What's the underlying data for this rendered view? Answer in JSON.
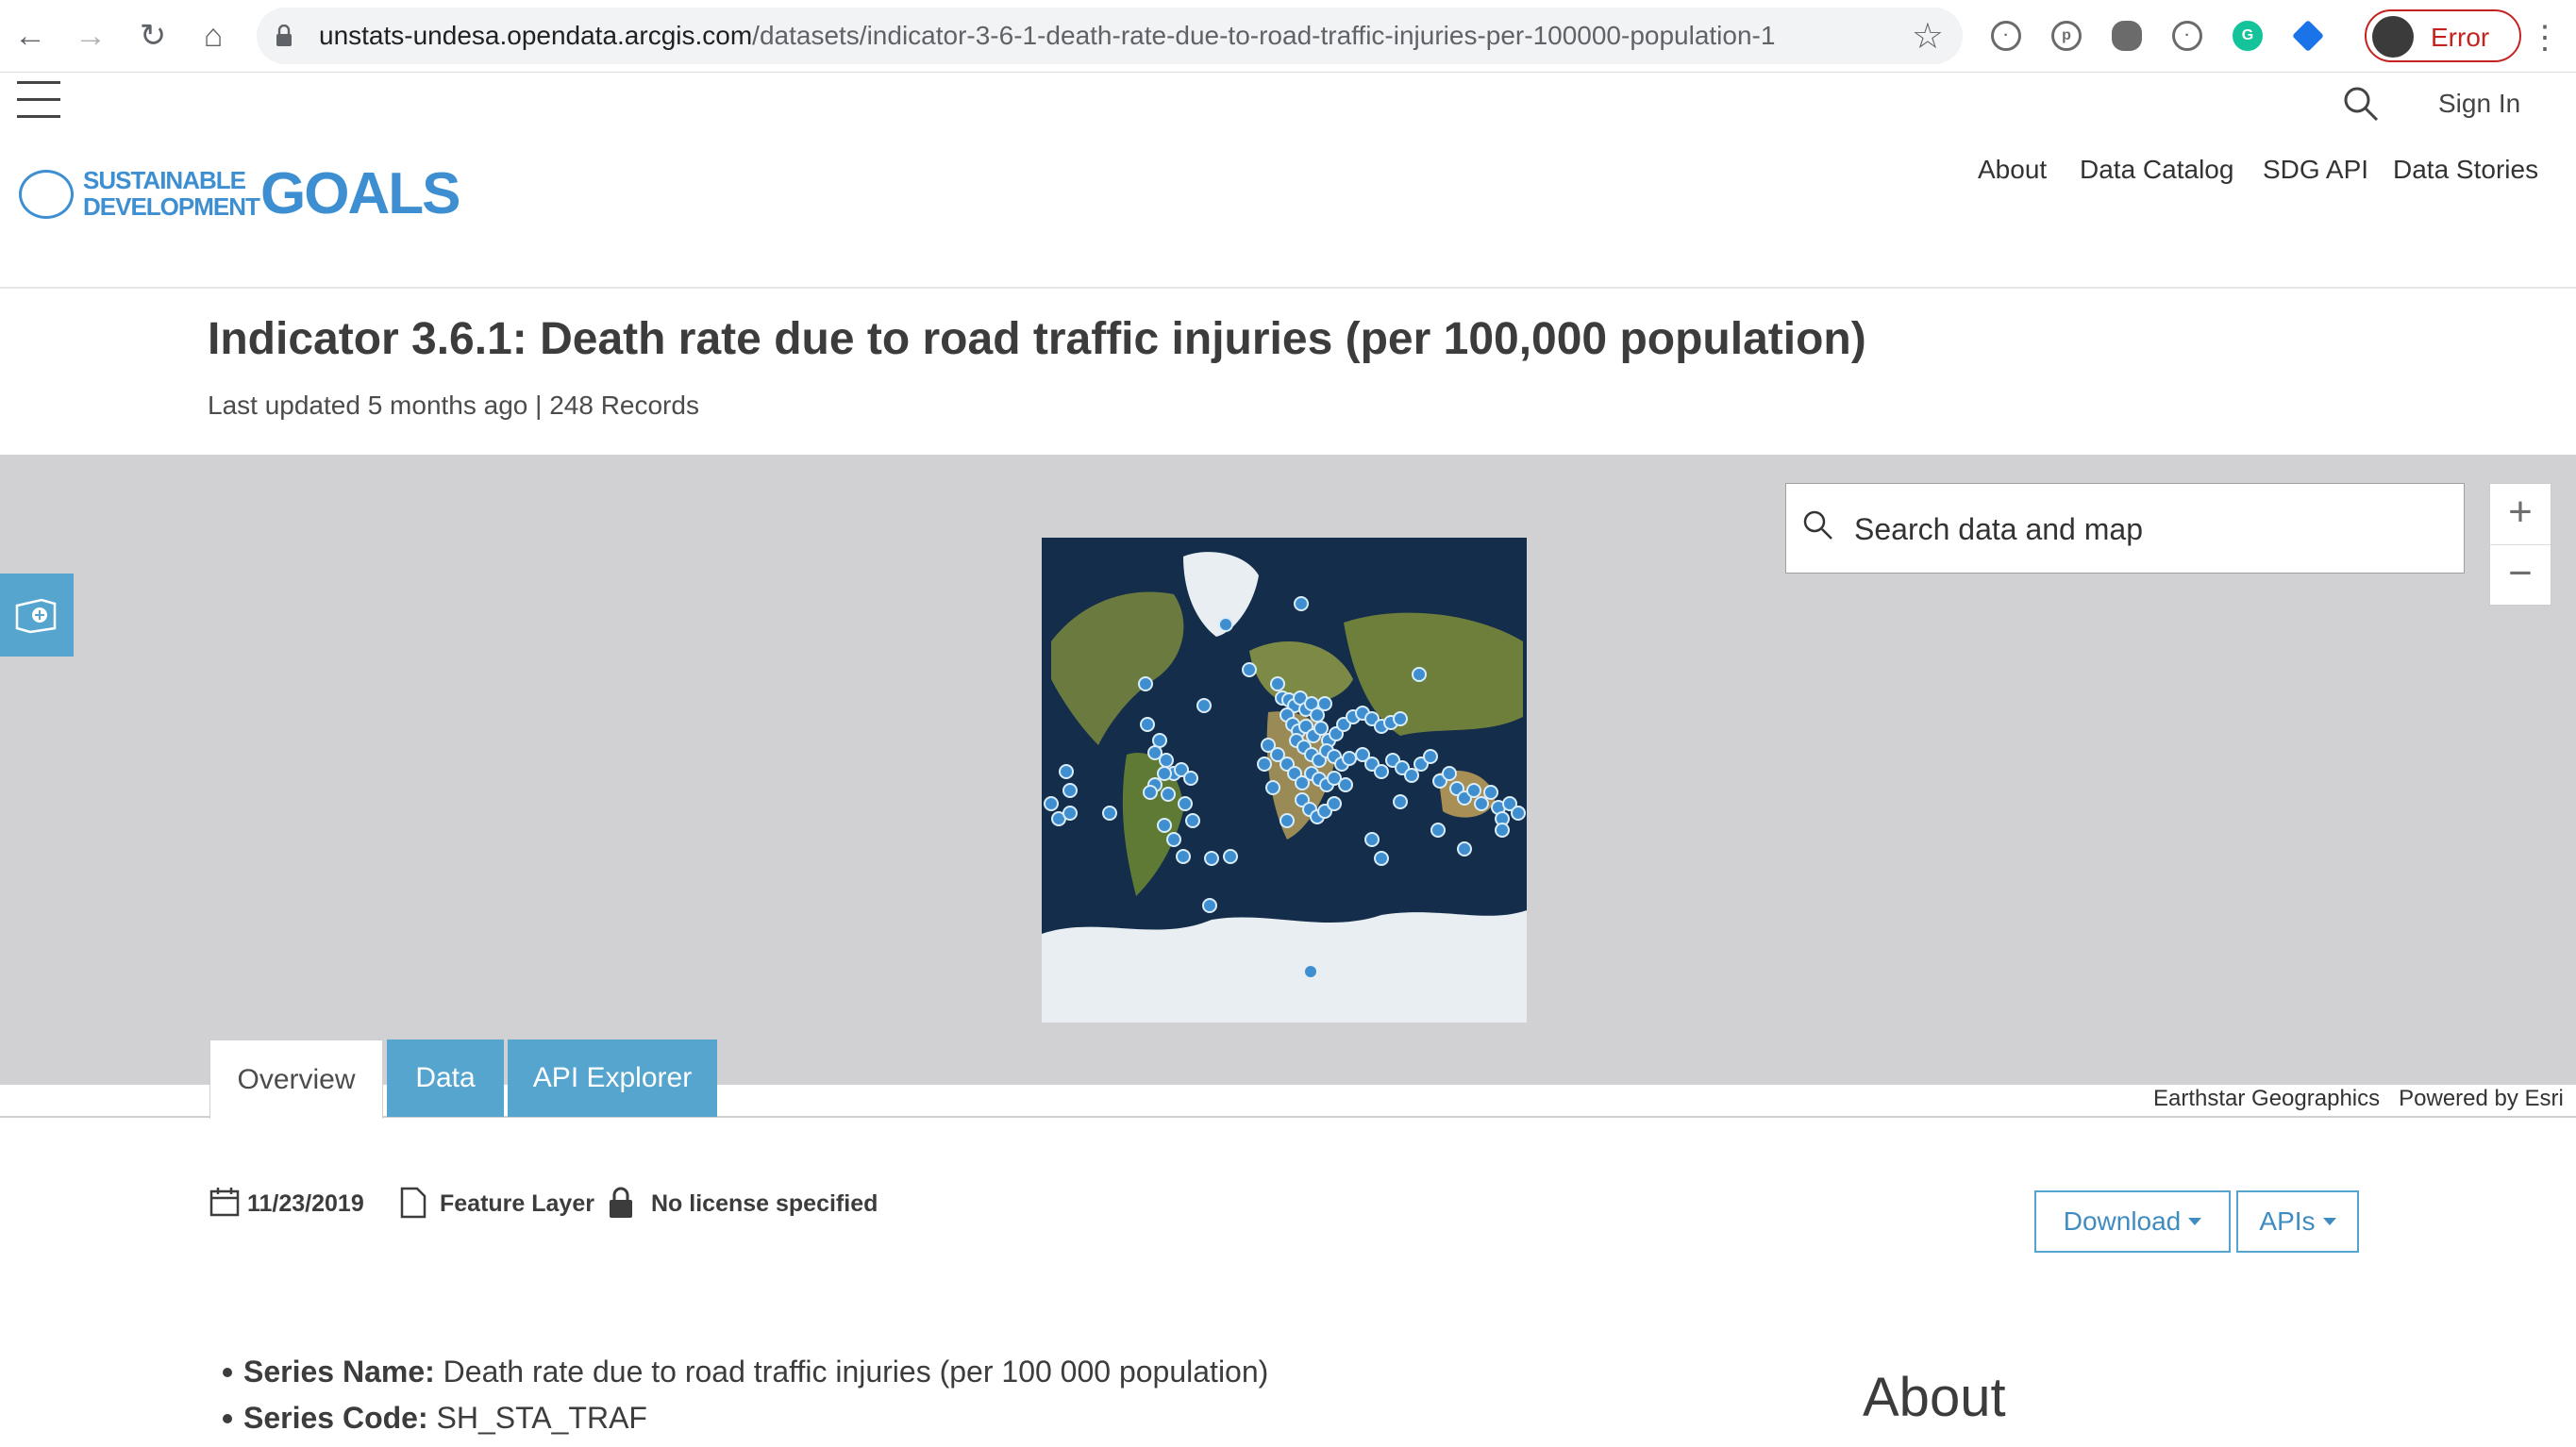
{
  "browser": {
    "url_host": "unstats-undesa.opendata.arcgis.com",
    "url_path": "/datasets/indicator-3-6-1-death-rate-due-to-road-traffic-injuries-per-100000-population-1",
    "profile_status": "Error"
  },
  "site": {
    "sign_in": "Sign In",
    "logo": {
      "line1": "SUSTAINABLE",
      "line2": "DEVELOPMENT",
      "goals": "GOALS"
    },
    "nav": [
      "About",
      "Data Catalog",
      "SDG API",
      "Data Stories"
    ]
  },
  "dataset": {
    "title": "Indicator 3.6.1: Death rate due to road traffic injuries (per 100,000 population)",
    "meta_line": "Last updated 5 months ago | 248 Records"
  },
  "map": {
    "search_placeholder": "Search data and map",
    "attribution": [
      "Earthstar Geographics",
      "Powered by Esri"
    ],
    "point_color": "#3f8fd0"
  },
  "tabs": [
    "Overview",
    "Data",
    "API Explorer"
  ],
  "details": {
    "date": "11/23/2019",
    "type": "Feature Layer",
    "license": "No license specified",
    "download": "Download",
    "apis": "APIs"
  },
  "description": {
    "items": [
      {
        "label": "Series Name:",
        "value": " Death rate due to road traffic injuries (per 100 000 population)"
      },
      {
        "label": "Series Code:",
        "value": " SH_STA_TRAF"
      }
    ],
    "about_heading": "About"
  }
}
